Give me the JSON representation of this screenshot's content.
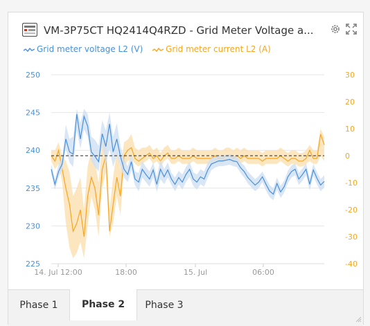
{
  "header": {
    "title": "VM-3P75CT HQ2414Q4RZD - Grid Meter Voltage a...",
    "device_icon": "meter-device-icon",
    "settings_icon": "gear-icon",
    "expand_icon": "expand-icon"
  },
  "colors": {
    "voltage": "#4a90d9",
    "current": "#f5a623",
    "voltage_fill": "#cfe0f3",
    "current_fill": "#fbe0b0"
  },
  "chart_data": {
    "type": "line",
    "x_labels": [
      "14. Jul 12:00",
      "18:00",
      "15. Jul",
      "06:00"
    ],
    "left_axis": {
      "ticks": [
        250,
        245,
        240,
        235,
        230,
        225
      ],
      "ylim": [
        225,
        250
      ]
    },
    "right_axis": {
      "ticks": [
        30,
        20,
        10,
        0,
        -10,
        -20,
        -30,
        -40
      ],
      "ylim": [
        -40,
        30
      ]
    },
    "reference_line": 0,
    "grid": true,
    "series": [
      {
        "name": "Grid meter voltage L2 (V)",
        "axis": "left",
        "values": [
          237.5,
          235.5,
          237.2,
          238.2,
          241.5,
          239.8,
          239.5,
          244.8,
          241.5,
          244.5,
          243.2,
          239.8,
          239.2,
          238.5,
          242.2,
          240.5,
          243.5,
          239.8,
          241.5,
          239.2,
          237.5,
          236.8,
          238.5,
          236.2,
          235.8,
          237.5,
          236.8,
          236.2,
          237.4,
          235.5,
          237.5,
          236.5,
          237.4,
          236.2,
          235.5,
          236.4,
          235.8,
          236.8,
          237.5,
          236.2,
          235.8,
          236.5,
          236.2,
          237.4,
          238.2,
          238.4,
          238.6,
          238.6,
          238.7,
          238.8,
          238.6,
          238.5,
          237.7,
          237.2,
          236.4,
          235.9,
          235.4,
          235.8,
          236.5,
          235.5,
          234.6,
          234.2,
          235.6,
          234.5,
          235.2,
          236.5,
          237.2,
          237.5,
          236.2,
          236.8,
          237.5,
          235.5,
          237.4,
          236.3,
          235.4,
          235.9
        ],
        "min": [
          236.8,
          234.8,
          236.4,
          237.4,
          240.2,
          238.4,
          237.8,
          242.6,
          240.2,
          242.8,
          241.8,
          238.6,
          237.8,
          237.2,
          240.8,
          238.2,
          240.2,
          237.8,
          239.4,
          237.8,
          236.4,
          235.8,
          237.4,
          235.4,
          234.6,
          236.4,
          235.8,
          235.2,
          236.4,
          234.5,
          236.2,
          235.5,
          236.4,
          235.4,
          234.6,
          235.5,
          234.8,
          235.8,
          236.5,
          235.3,
          234.8,
          235.5,
          235.2,
          236.4,
          237.4,
          237.7,
          237.9,
          237.9,
          238.0,
          238.1,
          237.9,
          237.8,
          237.0,
          236.4,
          235.6,
          235.1,
          234.6,
          235.0,
          235.8,
          234.7,
          233.8,
          233.4,
          234.8,
          233.7,
          234.4,
          235.7,
          236.4,
          236.7,
          235.4,
          236.0,
          236.7,
          234.7,
          236.6,
          235.5,
          234.6,
          235.1
        ],
        "max": [
          238.2,
          236.2,
          238.1,
          239.0,
          243.4,
          241.5,
          241.8,
          245.5,
          243.6,
          245.5,
          244.8,
          241.8,
          241.4,
          240.6,
          244.0,
          242.6,
          245.0,
          241.8,
          243.6,
          240.6,
          238.8,
          237.9,
          239.6,
          237.2,
          237.0,
          238.6,
          237.8,
          237.2,
          238.4,
          236.5,
          238.8,
          237.5,
          238.4,
          237.0,
          236.4,
          237.3,
          236.8,
          237.8,
          238.5,
          237.1,
          236.8,
          237.5,
          237.2,
          238.4,
          239.0,
          239.1,
          239.3,
          239.3,
          239.4,
          239.5,
          239.3,
          239.2,
          238.4,
          238.0,
          237.2,
          236.7,
          236.2,
          236.6,
          237.2,
          236.3,
          235.4,
          235.0,
          236.4,
          235.3,
          236.0,
          237.3,
          238.0,
          238.3,
          237.0,
          237.6,
          238.3,
          236.3,
          238.2,
          237.1,
          236.2,
          236.7
        ]
      },
      {
        "name": "Grid meter current L2 (A)",
        "axis": "right",
        "values": [
          0,
          -2,
          2,
          -5,
          -12,
          -18,
          -28,
          -25,
          -20,
          -30,
          -15,
          -8,
          -12,
          -22,
          -5,
          0,
          -28,
          -18,
          -8,
          -15,
          0,
          2,
          3,
          -1,
          -2,
          -1,
          0,
          1,
          -1,
          0,
          -2,
          0,
          1,
          -1,
          -1,
          0,
          -1,
          -1,
          -1,
          0,
          -1,
          -1,
          -1,
          -1,
          -1,
          0,
          -1,
          -1,
          0,
          0,
          -1,
          0,
          -1,
          0,
          -1,
          -1,
          -1,
          -1,
          -2,
          -1,
          -1,
          -1,
          -1,
          0,
          -1,
          -2,
          -1,
          -1,
          -2,
          -2,
          -1,
          2,
          -1,
          -1,
          8,
          4
        ],
        "min": [
          -2,
          -5,
          -3,
          -10,
          -25,
          -34,
          -38,
          -36,
          -32,
          -38,
          -26,
          -15,
          -20,
          -30,
          -12,
          -6,
          -30,
          -25,
          -15,
          -22,
          -4,
          -2,
          -1,
          -3,
          -4,
          -3,
          -2,
          -1,
          -3,
          -2,
          -4,
          -2,
          -1,
          -3,
          -3,
          -2,
          -3,
          -3,
          -3,
          -2,
          -3,
          -3,
          -3,
          -3,
          -3,
          -2,
          -3,
          -3,
          -2,
          -2,
          -3,
          -2,
          -3,
          -2,
          -3,
          -3,
          -3,
          -3,
          -4,
          -3,
          -3,
          -3,
          -3,
          -2,
          -3,
          -4,
          -3,
          -3,
          -4,
          -4,
          -3,
          -2,
          -3,
          -3,
          0,
          -2
        ],
        "max": [
          2,
          2,
          5,
          0,
          -2,
          -6,
          -15,
          -12,
          -8,
          -20,
          -4,
          2,
          -2,
          -10,
          5,
          6,
          -20,
          -8,
          2,
          -5,
          5,
          6,
          8,
          3,
          2,
          3,
          3,
          4,
          2,
          3,
          1,
          3,
          4,
          2,
          2,
          3,
          2,
          2,
          2,
          3,
          2,
          2,
          2,
          2,
          2,
          3,
          2,
          2,
          3,
          3,
          2,
          3,
          2,
          3,
          2,
          2,
          2,
          2,
          1,
          2,
          2,
          2,
          2,
          3,
          2,
          1,
          2,
          2,
          1,
          1,
          2,
          4,
          2,
          2,
          10,
          7
        ]
      }
    ]
  },
  "tabs": [
    {
      "label": "Phase 1",
      "active": false
    },
    {
      "label": "Phase 2",
      "active": true
    },
    {
      "label": "Phase 3",
      "active": false
    }
  ]
}
